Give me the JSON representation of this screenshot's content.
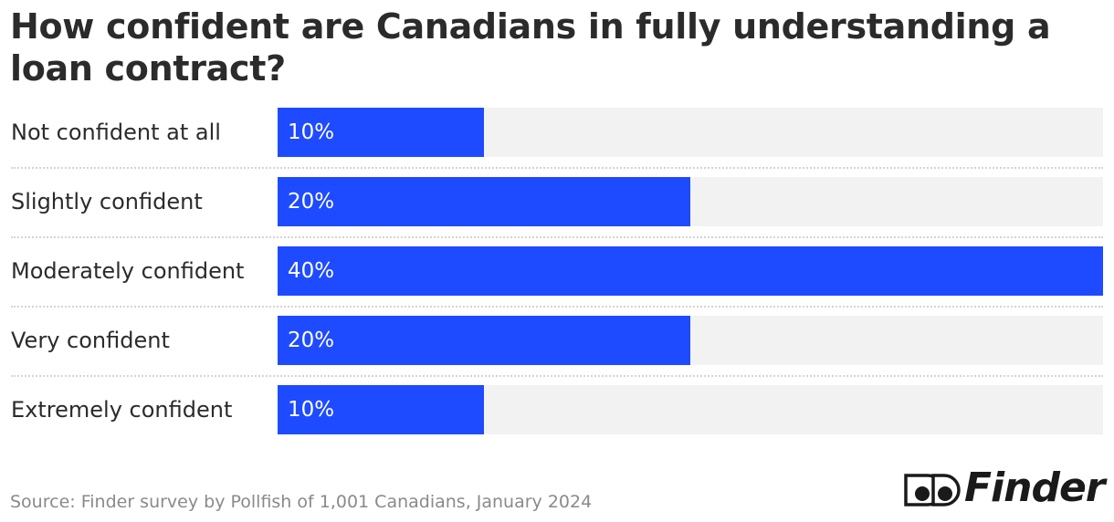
{
  "chart_data": {
    "type": "bar",
    "orientation": "horizontal",
    "title": "How confident are Canadians in fully understanding a loan contract?",
    "categories": [
      "Not confident at all",
      "Slightly confident",
      "Moderately confident",
      "Very confident",
      "Extremely confident"
    ],
    "values": [
      10,
      20,
      40,
      20,
      10
    ],
    "value_labels": [
      "10%",
      "20%",
      "40%",
      "20%",
      "10%"
    ],
    "xlim": [
      0,
      40
    ],
    "unit": "%",
    "bar_color": "#1e4bff",
    "track_color": "#f2f2f2",
    "grid": false,
    "legend": "none"
  },
  "source": "Source: Finder survey by Pollfish of 1,001 Canadians, January 2024",
  "brand": {
    "name": "Finder",
    "logo_icon": "finder-eyes-icon"
  }
}
